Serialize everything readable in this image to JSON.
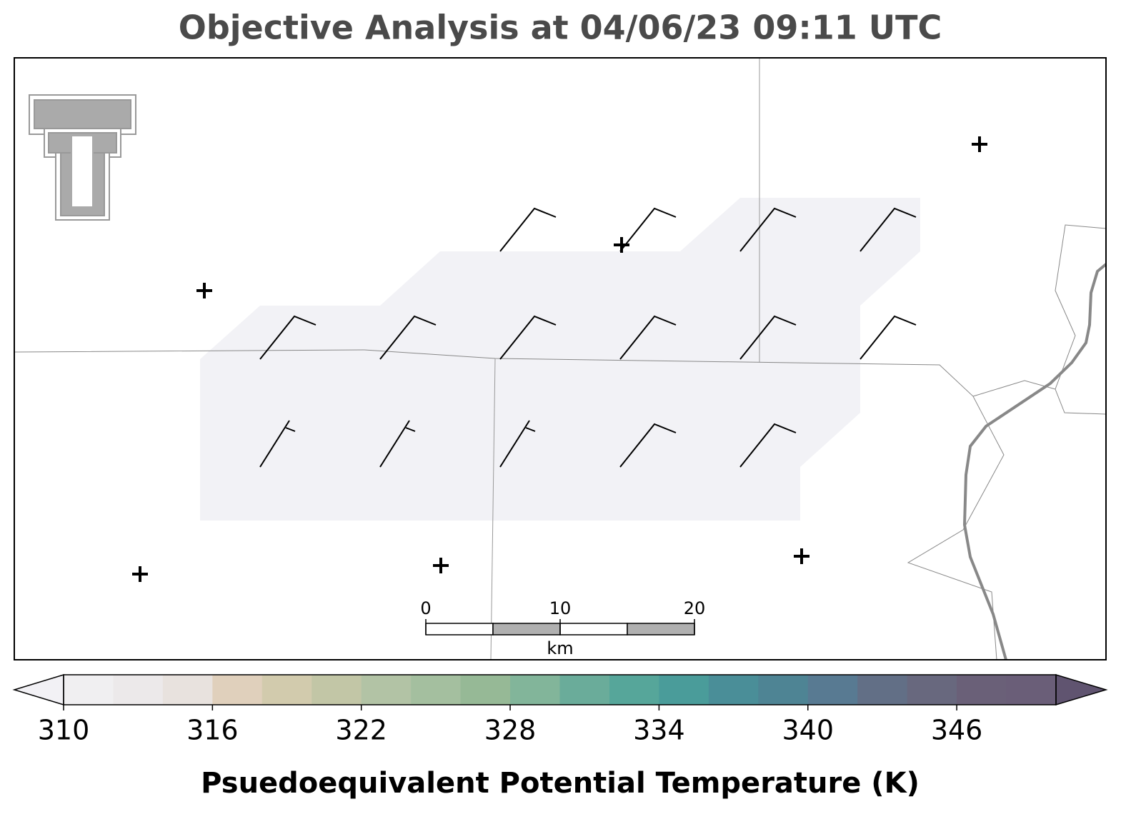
{
  "title": "Objective Analysis at 04/06/23 09:11 UTC",
  "scale_bar": {
    "xlim": [
      0,
      20
    ],
    "xticks": [
      0,
      10,
      20
    ],
    "label": "km"
  },
  "colorbar": {
    "label": "Psuedoequivalent Potential Temperature (K)",
    "lim": [
      310,
      350
    ],
    "ticks": [
      310,
      316,
      322,
      328,
      334,
      340,
      346
    ],
    "colors": [
      "#f0eff1",
      "#ece9ea",
      "#e8e2de",
      "#e0d0bc",
      "#d2cbad",
      "#c2c6a6",
      "#b2c3a5",
      "#a4bf9f",
      "#96b996",
      "#82b59a",
      "#6aac9a",
      "#56a69a",
      "#4a9c9a",
      "#4a8e98",
      "#4e8494",
      "#587a92",
      "#626f86",
      "#68687e",
      "#6a6078",
      "#6a5e78"
    ],
    "extend_colors": [
      "#f2f1f5",
      "#605470"
    ]
  }
}
